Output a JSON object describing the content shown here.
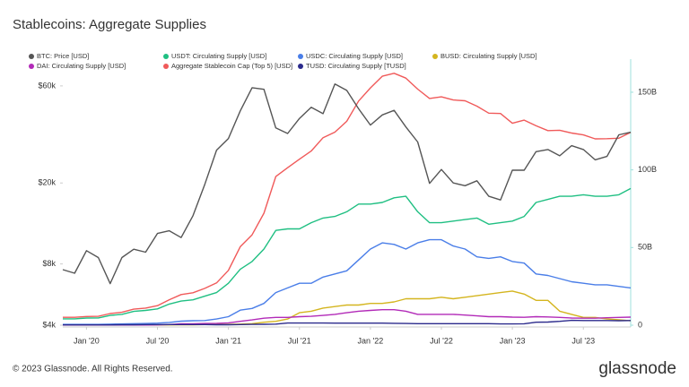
{
  "chart_data": {
    "type": "line",
    "title": "Stablecoins: Aggregate Supplies",
    "x": [
      "2019-11",
      "2019-12",
      "2020-01",
      "2020-02",
      "2020-03",
      "2020-04",
      "2020-05",
      "2020-06",
      "2020-07",
      "2020-08",
      "2020-09",
      "2020-10",
      "2020-11",
      "2020-12",
      "2021-01",
      "2021-02",
      "2021-03",
      "2021-04",
      "2021-05",
      "2021-06",
      "2021-07",
      "2021-08",
      "2021-09",
      "2021-10",
      "2021-11",
      "2021-12",
      "2022-01",
      "2022-02",
      "2022-03",
      "2022-04",
      "2022-05",
      "2022-06",
      "2022-07",
      "2022-08",
      "2022-09",
      "2022-10",
      "2022-11",
      "2022-12",
      "2023-01",
      "2023-02",
      "2023-03",
      "2023-04",
      "2023-05",
      "2023-06",
      "2023-07",
      "2023-08",
      "2023-09",
      "2023-10",
      "2023-11"
    ],
    "xlim": [
      "2019-11",
      "2023-11"
    ],
    "xticks": [
      {
        "value": "2020-01",
        "label": "Jan '20"
      },
      {
        "value": "2020-07",
        "label": "Jul '20"
      },
      {
        "value": "2021-01",
        "label": "Jan '21"
      },
      {
        "value": "2021-07",
        "label": "Jul '21"
      },
      {
        "value": "2022-01",
        "label": "Jan '22"
      },
      {
        "value": "2022-07",
        "label": "Jul '22"
      },
      {
        "value": "2023-01",
        "label": "Jan '23"
      },
      {
        "value": "2023-07",
        "label": "Jul '23"
      }
    ],
    "ylog": true,
    "ylim": [
      4000,
      78000
    ],
    "yticks": [
      {
        "value": 4000,
        "label": "$4k"
      },
      {
        "value": 8000,
        "label": "$8k"
      },
      {
        "value": 20000,
        "label": "$20k"
      },
      {
        "value": 60000,
        "label": "$60k"
      }
    ],
    "y2lim": [
      0,
      169
    ],
    "y2ticks": [
      0,
      {
        "value": 50,
        "label": "50B"
      },
      {
        "value": 100,
        "label": "100B"
      },
      {
        "value": 150,
        "label": "150B"
      }
    ],
    "grid": false,
    "series": [
      {
        "name": "USDT: Circulating Supply [USD]",
        "color": "#1fbf82",
        "axis": "y2",
        "values": [
          4.1,
          4.1,
          4.6,
          4.7,
          6.3,
          7.0,
          8.9,
          9.5,
          10.5,
          13.6,
          15.5,
          16.3,
          18.7,
          21.0,
          27,
          36,
          41,
          49,
          61,
          62,
          62,
          66,
          69,
          70,
          73,
          78,
          78,
          79,
          82,
          83,
          73,
          66,
          66,
          67,
          68,
          69,
          65,
          66,
          67,
          70,
          79,
          81,
          83,
          83,
          84,
          83,
          83,
          84,
          88
        ]
      },
      {
        "name": "USDC: Circulating Supply [USD]",
        "color": "#4a7ee8",
        "axis": "y2",
        "values": [
          0.5,
          0.5,
          0.5,
          0.5,
          0.7,
          0.8,
          1.0,
          1.1,
          1.3,
          1.8,
          2.6,
          2.9,
          3.0,
          4.0,
          5.5,
          9.7,
          10.8,
          14,
          21,
          24,
          27,
          27,
          31,
          33,
          35,
          42,
          49,
          53,
          52,
          49,
          53,
          55,
          55,
          51,
          49,
          44,
          43,
          44,
          41,
          40,
          33,
          32,
          30,
          28,
          27,
          26,
          26,
          25,
          24
        ]
      },
      {
        "name": "BUSD: Circulating Supply [USD]",
        "color": "#d4b51f",
        "axis": "y2",
        "values": [
          0.2,
          0.2,
          0.2,
          0.2,
          0.2,
          0.2,
          0.2,
          0.2,
          0.2,
          0.2,
          0.3,
          0.3,
          0.4,
          0.4,
          0.5,
          0.7,
          1.0,
          1.9,
          2.5,
          4.0,
          8,
          9,
          11,
          12,
          13,
          13,
          14,
          14,
          15,
          17,
          17,
          17,
          18,
          17,
          18,
          19,
          20,
          21,
          22,
          20,
          16,
          16,
          9,
          7,
          5,
          5,
          4,
          3.5,
          2.8
        ]
      },
      {
        "name": "DAI: Circulating Supply [USD]",
        "color": "#b22ab8",
        "axis": "y2",
        "values": [
          0.1,
          0.1,
          0.1,
          0.1,
          0.1,
          0.1,
          0.1,
          0.1,
          0.2,
          0.4,
          0.9,
          0.9,
          1.1,
          1.2,
          1.5,
          2.5,
          3.4,
          4.5,
          5,
          5,
          5.5,
          5.7,
          6.3,
          7,
          8,
          9,
          9.5,
          10,
          10,
          9,
          7,
          7,
          7,
          7,
          6.5,
          6,
          5.5,
          5.5,
          5.2,
          5.1,
          5.5,
          5.3,
          5,
          4.6,
          4.5,
          4.5,
          4.8,
          5,
          5.2
        ]
      },
      {
        "name": "Aggregate Stablecoin Cap (Top 5) [USD]",
        "color": "#f05a5a",
        "axis": "y2",
        "values": [
          5.1,
          5.1,
          5.6,
          5.7,
          7.5,
          8.3,
          10.3,
          11.0,
          12.6,
          16.4,
          19.7,
          20.9,
          23.7,
          27.2,
          35.3,
          50.5,
          58.2,
          72.1,
          95.7,
          101.4,
          106.9,
          112.1,
          120.7,
          124.3,
          131.3,
          144.3,
          152.8,
          160.3,
          162.2,
          159.1,
          152,
          146,
          147,
          145,
          144.5,
          141,
          136.5,
          136.3,
          130,
          132,
          128.4,
          125.3,
          125.5,
          123.7,
          122.5,
          120,
          120.1,
          120.4,
          124.2
        ]
      },
      {
        "name": "TUSD: Circulating Supply [TUSD]",
        "color": "#2b2a8c",
        "axis": "y2",
        "values": [
          0.2,
          0.2,
          0.2,
          0.2,
          0.2,
          0.3,
          0.3,
          0.4,
          0.4,
          0.4,
          0.4,
          0.4,
          0.4,
          0.3,
          0.3,
          0.4,
          0.5,
          0.6,
          0.7,
          1.4,
          1.4,
          1.4,
          1.4,
          1.3,
          1.3,
          1.3,
          1.3,
          1.3,
          1.2,
          1.1,
          1.0,
          1.0,
          1.0,
          1.0,
          1.0,
          1.0,
          1.0,
          0.8,
          0.8,
          0.9,
          1.9,
          2.0,
          2.5,
          3.1,
          3.0,
          3.0,
          3.0,
          2.9,
          3.0
        ]
      },
      {
        "name": "BTC: Price [USD]",
        "color": "#555555",
        "axis": "y",
        "values": [
          7500,
          7200,
          9300,
          8600,
          6400,
          8600,
          9450,
          9140,
          11300,
          11650,
          10780,
          13800,
          19700,
          29000,
          33100,
          45200,
          58800,
          57700,
          37300,
          35000,
          41500,
          47100,
          43800,
          61300,
          57000,
          46300,
          38500,
          43200,
          45500,
          37700,
          31800,
          19900,
          23300,
          20000,
          19400,
          20500,
          17200,
          16500,
          23100,
          23100,
          28500,
          29200,
          27200,
          30500,
          29200,
          26000,
          27000,
          34500,
          35500
        ]
      }
    ],
    "legend_order": [
      6,
      0,
      1,
      2,
      3,
      4,
      5
    ]
  },
  "footer": {
    "copyright": "© 2023 Glassnode. All Rights Reserved.",
    "logo": "glassnode"
  }
}
